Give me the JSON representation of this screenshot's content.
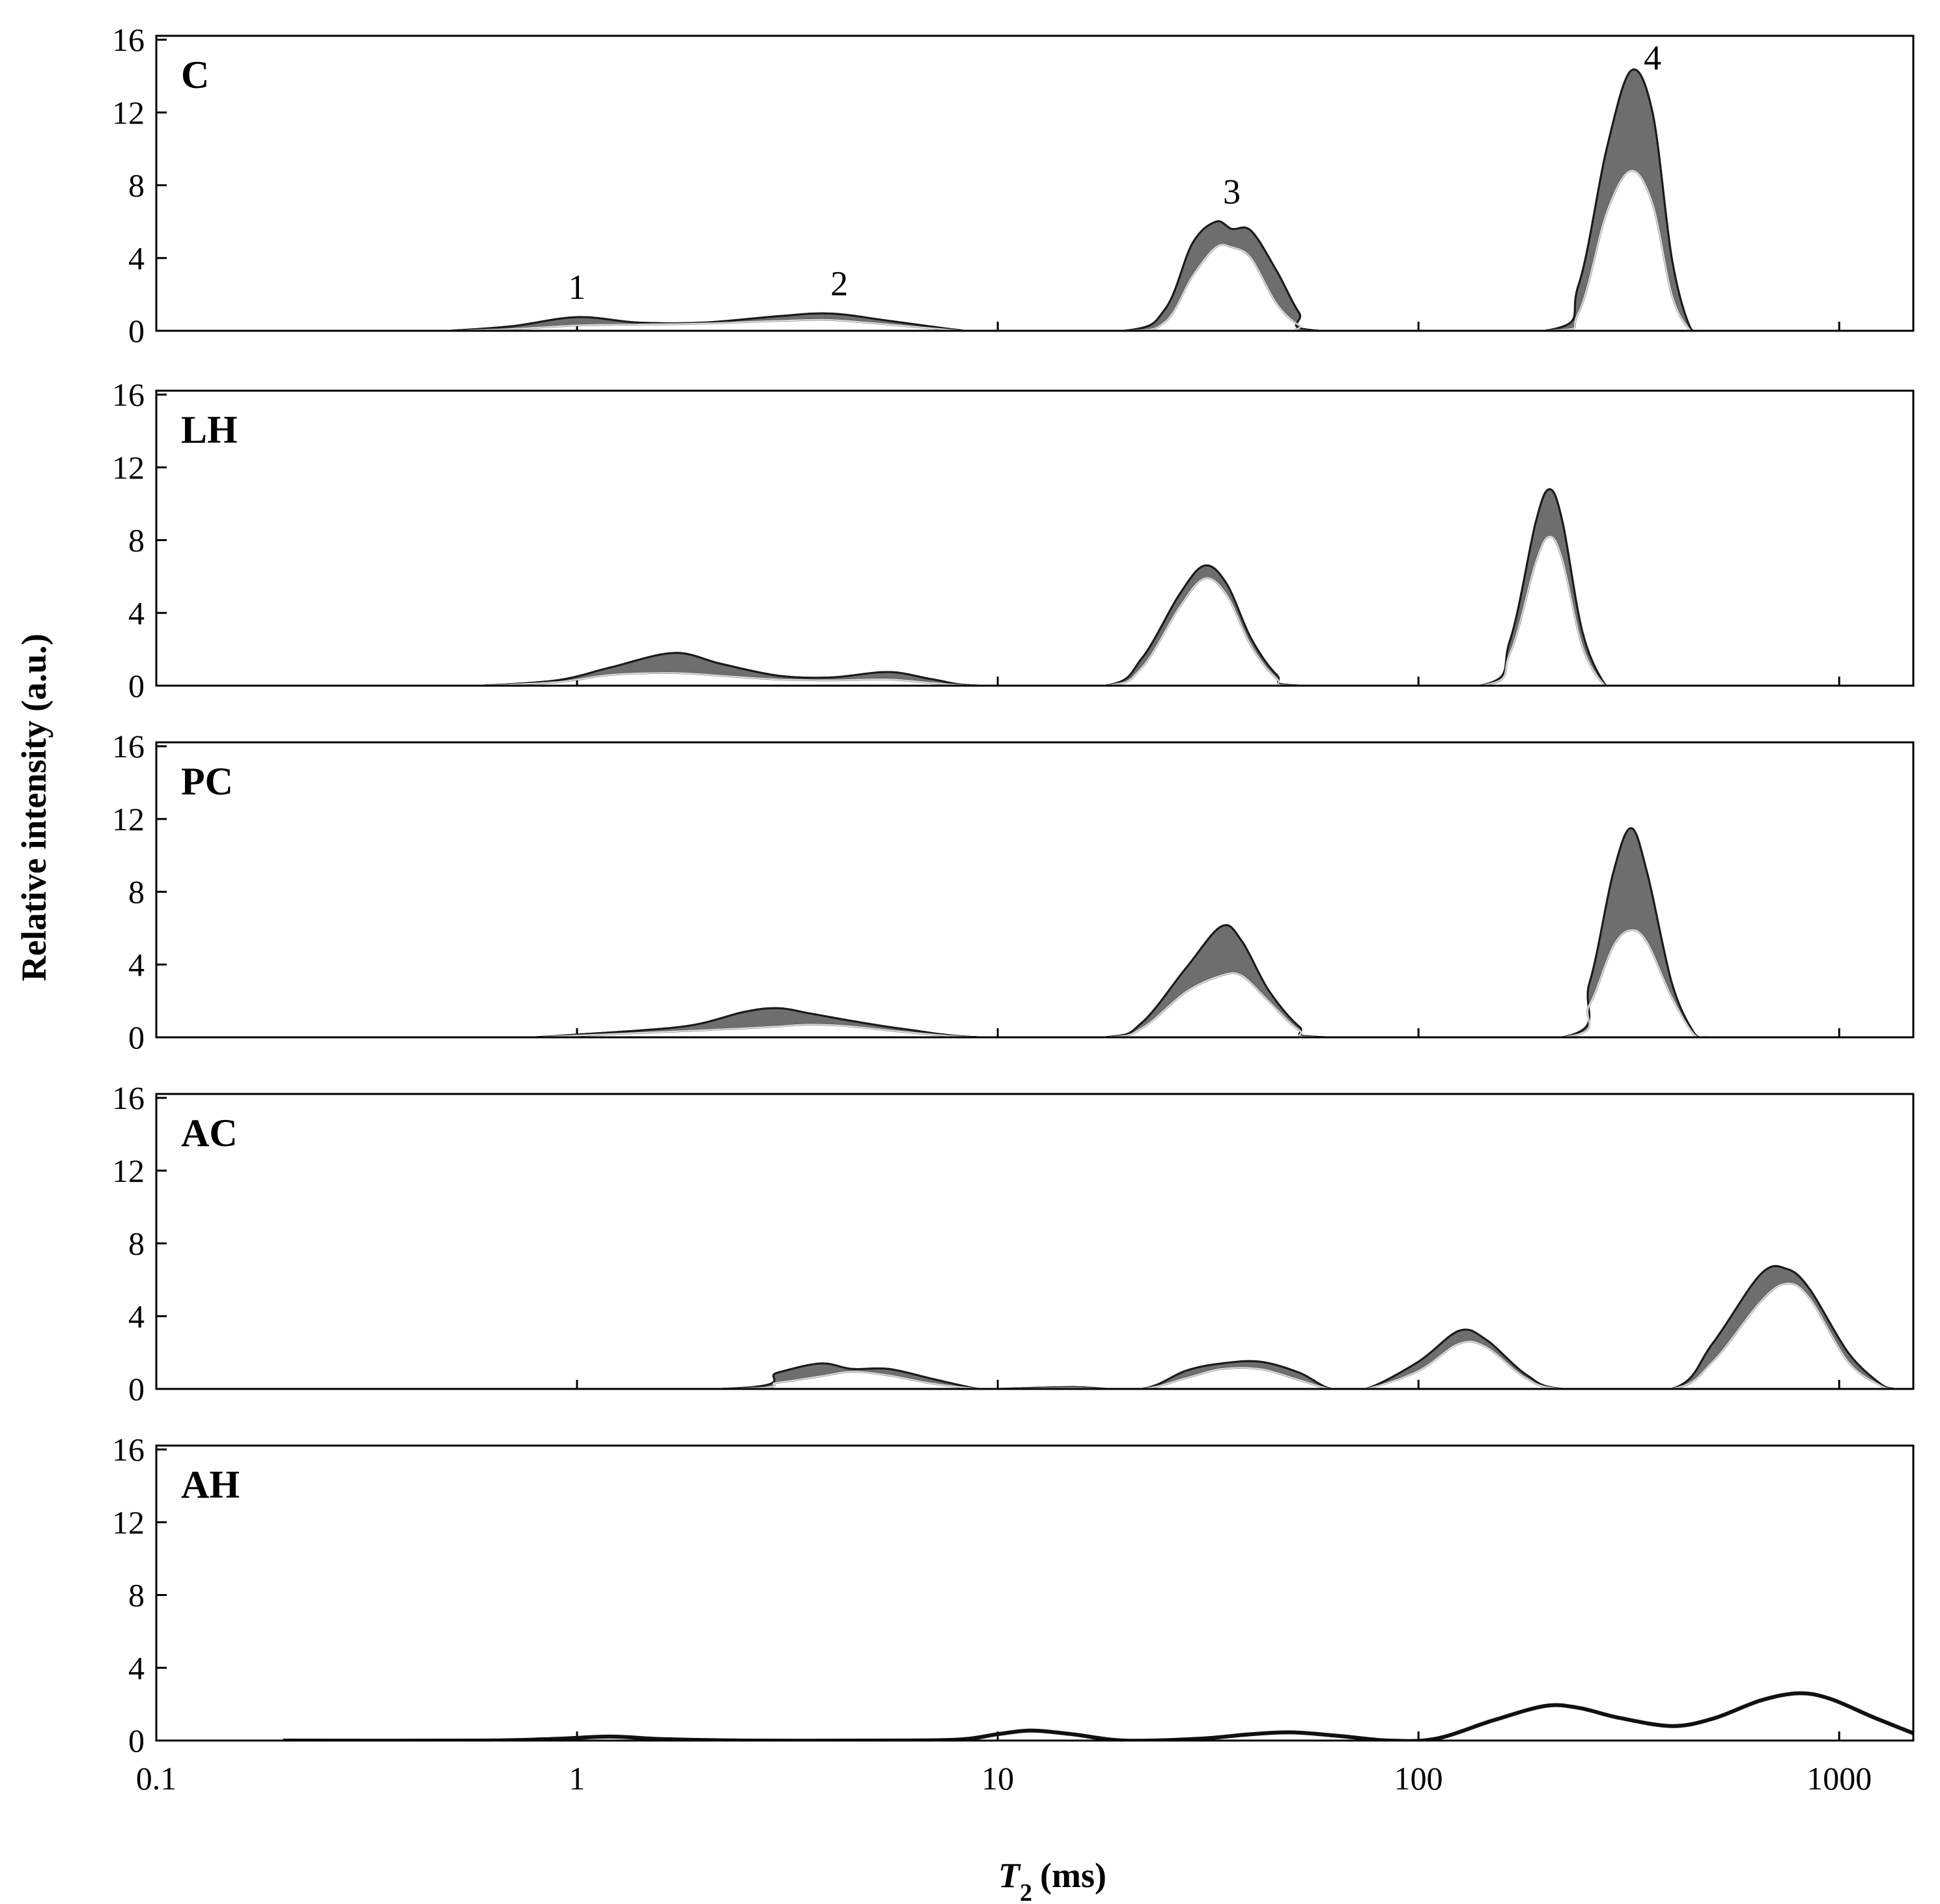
{
  "chart_data": {
    "type": "area",
    "xscale": "log",
    "xlim": [
      0.1,
      1500
    ],
    "ylim": [
      0,
      16
    ],
    "xlabel_italic": "T",
    "xlabel_subscript": "2",
    "xlabel_units": "(ms)",
    "ylabel": "Relative intensity (a.u.)",
    "xticks": [
      0.1,
      1,
      10,
      100,
      1000
    ],
    "xtick_labels": [
      "0.1",
      "1",
      "10",
      "100",
      "1000"
    ],
    "yticks": [
      0,
      4,
      8,
      12,
      16
    ],
    "ytick_labels": [
      "0",
      "4",
      "8",
      "12",
      "16"
    ],
    "panels": [
      {
        "label": "C",
        "upper": [
          [
            0.5,
            0
          ],
          [
            0.7,
            0.25
          ],
          [
            1,
            0.75
          ],
          [
            1.4,
            0.45
          ],
          [
            2,
            0.45
          ],
          [
            3,
            0.8
          ],
          [
            4,
            0.95
          ],
          [
            5.5,
            0.55
          ],
          [
            8,
            0.05
          ],
          [
            9,
            0
          ],
          [
            20,
            0
          ],
          [
            25,
            1.2
          ],
          [
            29,
            4.8
          ],
          [
            33,
            6.0
          ],
          [
            36,
            5.6
          ],
          [
            40,
            5.5
          ],
          [
            46,
            3.3
          ],
          [
            52,
            1.0
          ],
          [
            58,
            0
          ],
          [
            200,
            0
          ],
          [
            240,
            2.5
          ],
          [
            280,
            10
          ],
          [
            320,
            14.3
          ],
          [
            360,
            12
          ],
          [
            400,
            4
          ],
          [
            440,
            0.3
          ],
          [
            470,
            0
          ]
        ],
        "lower": [
          [
            0.5,
            0
          ],
          [
            0.7,
            0.1
          ],
          [
            1,
            0.3
          ],
          [
            1.4,
            0.35
          ],
          [
            2,
            0.4
          ],
          [
            3,
            0.55
          ],
          [
            4,
            0.6
          ],
          [
            5.5,
            0.35
          ],
          [
            8,
            0.02
          ],
          [
            9,
            0
          ],
          [
            20,
            0
          ],
          [
            25,
            0.5
          ],
          [
            29,
            3.0
          ],
          [
            33,
            4.6
          ],
          [
            36,
            4.6
          ],
          [
            40,
            4.0
          ],
          [
            46,
            1.5
          ],
          [
            52,
            0.3
          ],
          [
            58,
            0
          ],
          [
            200,
            0
          ],
          [
            240,
            1.0
          ],
          [
            280,
            6.5
          ],
          [
            320,
            8.8
          ],
          [
            360,
            7.0
          ],
          [
            400,
            2.0
          ],
          [
            440,
            0.1
          ],
          [
            470,
            0
          ]
        ],
        "annotations": [
          {
            "text": "1",
            "x": 1.0
          },
          {
            "text": "2",
            "x": 4.2
          },
          {
            "text": "3",
            "x": 36
          },
          {
            "text": "4",
            "x": 360
          }
        ]
      },
      {
        "label": "LH",
        "upper": [
          [
            0.6,
            0
          ],
          [
            0.9,
            0.3
          ],
          [
            1.2,
            1.0
          ],
          [
            1.7,
            1.8
          ],
          [
            2.2,
            1.2
          ],
          [
            3,
            0.55
          ],
          [
            4,
            0.45
          ],
          [
            5.5,
            0.75
          ],
          [
            7,
            0.35
          ],
          [
            9,
            0
          ],
          [
            18,
            0
          ],
          [
            22,
            1.5
          ],
          [
            27,
            5.0
          ],
          [
            31,
            6.6
          ],
          [
            35,
            5.6
          ],
          [
            40,
            2.6
          ],
          [
            46,
            0.6
          ],
          [
            52,
            0
          ],
          [
            140,
            0
          ],
          [
            165,
            2.5
          ],
          [
            190,
            9.0
          ],
          [
            205,
            10.8
          ],
          [
            220,
            9.0
          ],
          [
            245,
            3.0
          ],
          [
            275,
            0.2
          ],
          [
            295,
            0
          ]
        ],
        "lower": [
          [
            0.6,
            0
          ],
          [
            0.9,
            0.2
          ],
          [
            1.2,
            0.6
          ],
          [
            1.7,
            0.7
          ],
          [
            2.2,
            0.55
          ],
          [
            3,
            0.35
          ],
          [
            4,
            0.3
          ],
          [
            5.5,
            0.35
          ],
          [
            7,
            0.15
          ],
          [
            9,
            0
          ],
          [
            18,
            0
          ],
          [
            22,
            1.0
          ],
          [
            27,
            4.3
          ],
          [
            31,
            5.9
          ],
          [
            35,
            5.0
          ],
          [
            40,
            2.2
          ],
          [
            46,
            0.4
          ],
          [
            52,
            0
          ],
          [
            140,
            0
          ],
          [
            165,
            1.8
          ],
          [
            190,
            6.8
          ],
          [
            205,
            8.2
          ],
          [
            220,
            6.9
          ],
          [
            245,
            2.2
          ],
          [
            275,
            0.1
          ],
          [
            295,
            0
          ]
        ]
      },
      {
        "label": "PC",
        "upper": [
          [
            0.8,
            0
          ],
          [
            1,
            0.15
          ],
          [
            1.8,
            0.6
          ],
          [
            2.5,
            1.4
          ],
          [
            3,
            1.6
          ],
          [
            3.6,
            1.3
          ],
          [
            4.5,
            0.9
          ],
          [
            6,
            0.45
          ],
          [
            9,
            0
          ],
          [
            18,
            0
          ],
          [
            22,
            0.8
          ],
          [
            28,
            3.8
          ],
          [
            34,
            6.1
          ],
          [
            38,
            5.3
          ],
          [
            44,
            2.6
          ],
          [
            52,
            0.6
          ],
          [
            60,
            0
          ],
          [
            220,
            0
          ],
          [
            255,
            3.0
          ],
          [
            290,
            9.0
          ],
          [
            320,
            11.5
          ],
          [
            350,
            9.0
          ],
          [
            400,
            3.0
          ],
          [
            450,
            0.3
          ],
          [
            480,
            0
          ]
        ],
        "lower": [
          [
            0.8,
            0
          ],
          [
            1,
            0.1
          ],
          [
            1.8,
            0.35
          ],
          [
            2.5,
            0.5
          ],
          [
            3,
            0.6
          ],
          [
            3.6,
            0.7
          ],
          [
            4.5,
            0.6
          ],
          [
            6,
            0.3
          ],
          [
            9,
            0
          ],
          [
            18,
            0
          ],
          [
            22,
            0.5
          ],
          [
            28,
            2.5
          ],
          [
            34,
            3.4
          ],
          [
            38,
            3.4
          ],
          [
            44,
            2.0
          ],
          [
            52,
            0.4
          ],
          [
            60,
            0
          ],
          [
            220,
            0
          ],
          [
            255,
            1.8
          ],
          [
            290,
            5.0
          ],
          [
            320,
            5.9
          ],
          [
            350,
            5.2
          ],
          [
            400,
            2.2
          ],
          [
            450,
            0.2
          ],
          [
            480,
            0
          ]
        ]
      },
      {
        "label": "AC",
        "upper": [
          [
            0.2,
            0
          ],
          [
            2.2,
            0
          ],
          [
            3,
            0.9
          ],
          [
            3.8,
            1.4
          ],
          [
            4.5,
            1.1
          ],
          [
            5.5,
            1.1
          ],
          [
            7,
            0.55
          ],
          [
            9,
            0
          ],
          [
            10,
            0
          ],
          [
            15,
            0.1
          ],
          [
            22,
            0
          ],
          [
            28,
            1.0
          ],
          [
            34,
            1.4
          ],
          [
            42,
            1.5
          ],
          [
            52,
            0.9
          ],
          [
            62,
            0
          ],
          [
            75,
            0
          ],
          [
            100,
            1.5
          ],
          [
            125,
            3.2
          ],
          [
            145,
            2.7
          ],
          [
            180,
            0.8
          ],
          [
            220,
            0
          ],
          [
            400,
            0
          ],
          [
            500,
            2.5
          ],
          [
            650,
            6.3
          ],
          [
            750,
            6.6
          ],
          [
            850,
            5.5
          ],
          [
            1050,
            2.0
          ],
          [
            1250,
            0.3
          ],
          [
            1350,
            0
          ]
        ],
        "lower": [
          [
            0.2,
            0
          ],
          [
            2.2,
            0
          ],
          [
            3,
            0.35
          ],
          [
            3.8,
            0.7
          ],
          [
            4.5,
            0.95
          ],
          [
            5.5,
            0.75
          ],
          [
            7,
            0.3
          ],
          [
            9,
            0
          ],
          [
            10,
            0
          ],
          [
            15,
            0.05
          ],
          [
            22,
            0
          ],
          [
            28,
            0.6
          ],
          [
            34,
            1.1
          ],
          [
            42,
            1.1
          ],
          [
            52,
            0.5
          ],
          [
            62,
            0
          ],
          [
            75,
            0
          ],
          [
            100,
            1.0
          ],
          [
            125,
            2.5
          ],
          [
            145,
            2.3
          ],
          [
            180,
            0.6
          ],
          [
            220,
            0
          ],
          [
            400,
            0
          ],
          [
            500,
            1.5
          ],
          [
            650,
            4.8
          ],
          [
            750,
            5.8
          ],
          [
            850,
            5.0
          ],
          [
            1050,
            1.5
          ],
          [
            1250,
            0.2
          ],
          [
            1350,
            0
          ]
        ]
      },
      {
        "label": "AH",
        "line": [
          [
            0.2,
            0
          ],
          [
            0.6,
            0
          ],
          [
            0.9,
            0.1
          ],
          [
            1.2,
            0.22
          ],
          [
            1.6,
            0.08
          ],
          [
            2.5,
            0
          ],
          [
            5,
            0
          ],
          [
            8,
            0.05
          ],
          [
            10,
            0.35
          ],
          [
            12,
            0.55
          ],
          [
            15,
            0.35
          ],
          [
            20,
            0
          ],
          [
            30,
            0.1
          ],
          [
            40,
            0.35
          ],
          [
            50,
            0.45
          ],
          [
            65,
            0.25
          ],
          [
            85,
            0
          ],
          [
            110,
            0.1
          ],
          [
            150,
            1.1
          ],
          [
            200,
            1.9
          ],
          [
            240,
            1.8
          ],
          [
            300,
            1.25
          ],
          [
            400,
            0.8
          ],
          [
            500,
            1.2
          ],
          [
            650,
            2.2
          ],
          [
            800,
            2.6
          ],
          [
            950,
            2.3
          ],
          [
            1200,
            1.3
          ],
          [
            1500,
            0.4
          ]
        ]
      }
    ]
  }
}
